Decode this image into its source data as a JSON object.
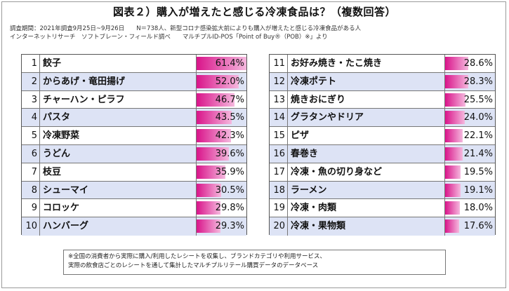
{
  "title": "図表２）購入が増えたと感じる冷凍食品は？（複数回答）",
  "meta_line1": "調査期間：2021年調査9月25日~9月26日　　N＝738人、新型コロナ感染拡大前によりも購入が増えたと感じる冷凍食品がある人",
  "meta_line2": "インターネットリサーチ　ソフトブレーン・フィールド調べ　　マルチプルID-POS「Point of Buy®（POB）※」より",
  "note_line1": "※全国の消費者から実際に購入/利用したレシートを収集し、ブランドカテゴリや利用サービス、",
  "note_line2": "実際の飲食店ごとのレシートを通して集計したマルチプルリテール購買データのデータベース",
  "colors": {
    "bar_start": "#d9148a",
    "bar_end": "#f5b8de",
    "row_alt": "#dde3f5"
  },
  "chart_data": {
    "type": "bar",
    "title": "図表２）購入が増えたと感じる冷凍食品は？（複数回答）",
    "unit": "%",
    "ylim": [
      0,
      100
    ],
    "ranks": [
      "1",
      "2",
      "3",
      "4",
      "5",
      "6",
      "7",
      "8",
      "9",
      "10",
      "11",
      "12",
      "13",
      "14",
      "15",
      "16",
      "17",
      "18",
      "19",
      "20"
    ],
    "categories": [
      "餃子",
      "からあげ・竜田揚げ",
      "チャーハン・ピラフ",
      "パスタ",
      "冷凍野菜",
      "うどん",
      "枝豆",
      "シューマイ",
      "コロッケ",
      "ハンバーグ",
      "お好み焼き・たこ焼き",
      "冷凍ポテト",
      "焼きおにぎり",
      "グラタンやドリア",
      "ピザ",
      "春巻き",
      "冷凍・魚の切り身など",
      "ラーメン",
      "冷凍・肉類",
      "冷凍・果物類"
    ],
    "values": [
      61.4,
      52.0,
      46.7,
      43.5,
      42.3,
      39.6,
      35.9,
      30.5,
      29.8,
      29.3,
      28.6,
      28.3,
      25.5,
      24.0,
      22.1,
      21.4,
      19.5,
      19.1,
      18.0,
      17.6
    ],
    "labels": [
      "61.4%",
      "52.0%",
      "46.7%",
      "43.5%",
      "42.3%",
      "39.6%",
      "35.9%",
      "30.5%",
      "29.8%",
      "29.3%",
      "28.6%",
      "28.3%",
      "25.5%",
      "24.0%",
      "22.1%",
      "21.4%",
      "19.5%",
      "19.1%",
      "18.0%",
      "17.6%"
    ]
  }
}
